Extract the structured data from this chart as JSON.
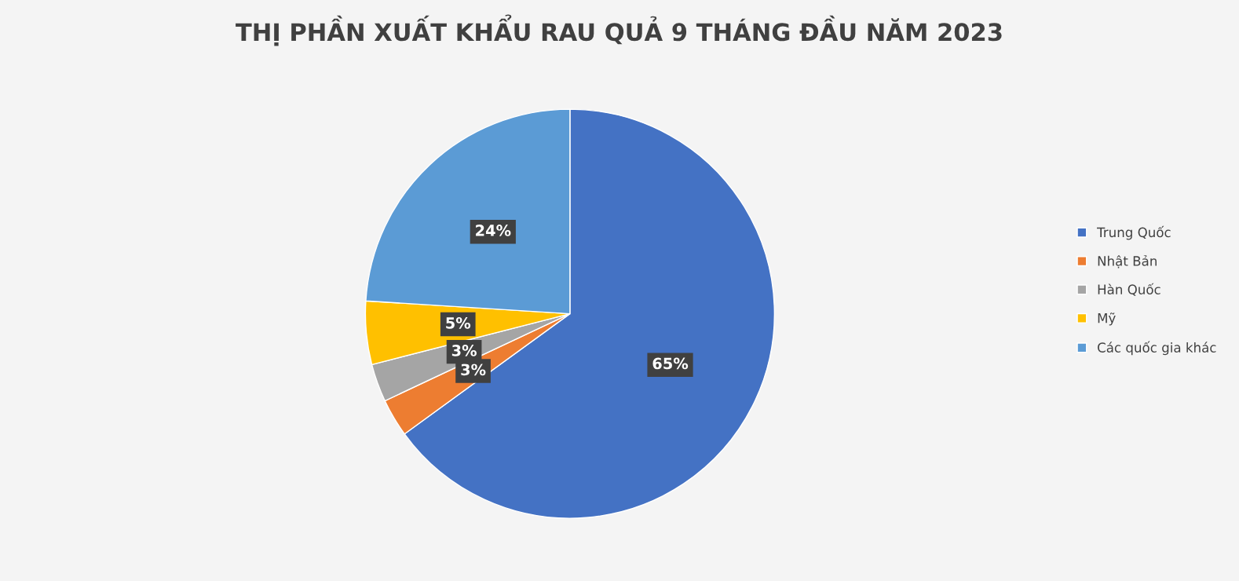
{
  "chart_data": {
    "type": "pie",
    "title": "THỊ PHẦN XUẤT KHẨU RAU QUẢ 9 THÁNG ĐẦU NĂM 2023",
    "categories": [
      "Trung Quốc",
      "Nhật Bản",
      "Hàn Quốc",
      "Mỹ",
      "Các quốc gia khác"
    ],
    "values": [
      65,
      3,
      3,
      5,
      24
    ],
    "colors": [
      "#4472c4",
      "#ed7d31",
      "#a5a5a5",
      "#ffc000",
      "#5b9bd5"
    ],
    "value_labels": [
      "65%",
      "3%",
      "3%",
      "5%",
      "24%"
    ],
    "legend": "right"
  }
}
